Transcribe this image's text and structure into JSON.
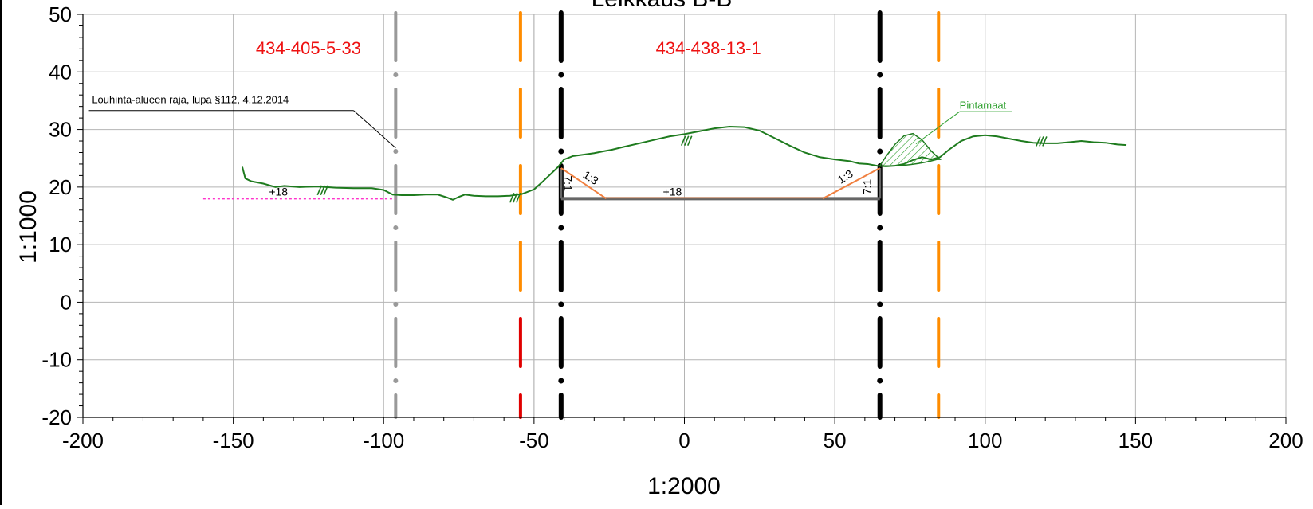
{
  "chart_data": {
    "type": "line",
    "title": "Leikkaus B-B",
    "xlabel": "1:2000",
    "ylabel": "1:1000",
    "xlim": [
      -200,
      200
    ],
    "ylim": [
      -20,
      50
    ],
    "x_ticks": [
      -200,
      -150,
      -100,
      -50,
      0,
      50,
      100,
      150,
      200
    ],
    "y_ticks": [
      -20,
      -10,
      0,
      10,
      20,
      30,
      40,
      50
    ],
    "grid": true,
    "property_lines": [
      {
        "x": -96,
        "color": "#999999",
        "label": "434-405-5-33",
        "label_x": -125
      },
      {
        "x": -54.5,
        "color": "#ff8c00",
        "color_lower": "#e00000",
        "label": "",
        "label_x": null
      },
      {
        "x": -41,
        "color": "#000000",
        "label": "434-438-13-1",
        "label_x": 8
      },
      {
        "x": 65,
        "color": "#000000",
        "label": "",
        "label_x": null
      },
      {
        "x": 84.5,
        "color": "#ff8c00",
        "label": "",
        "label_x": null
      }
    ],
    "series": [
      {
        "color": "#1e7b1e",
        "x": [
          -147,
          -146,
          -144,
          -140,
          -136,
          -133,
          -128,
          -122,
          -116,
          -110,
          -104,
          -100,
          -97,
          -94,
          -90,
          -86,
          -82,
          -79,
          -77,
          -75,
          -73,
          -70,
          -66,
          -62,
          -58,
          -54,
          -50,
          -47,
          -44,
          -42,
          -40,
          -37,
          -34,
          -30,
          -27,
          -24,
          -20,
          -15,
          -10,
          -5,
          0,
          5,
          10,
          15,
          20,
          25,
          30,
          35,
          40,
          45,
          50,
          55,
          58,
          61,
          64,
          67,
          70,
          73,
          76,
          79,
          82,
          85,
          88,
          92,
          96,
          100,
          104,
          108,
          112,
          116,
          120,
          124,
          128,
          132,
          136,
          140,
          144,
          147
        ],
        "y": [
          23.5,
          21.5,
          21,
          20.6,
          20,
          20.2,
          20,
          20.1,
          19.9,
          19.8,
          19.8,
          19.5,
          18.7,
          18.6,
          18.6,
          18.7,
          18.7,
          18.2,
          17.8,
          18.3,
          18.7,
          18.5,
          18.4,
          18.4,
          18.5,
          18.8,
          19.6,
          21,
          22.5,
          23.5,
          24.8,
          25.4,
          25.6,
          25.9,
          26.2,
          26.5,
          27,
          27.6,
          28.2,
          28.8,
          29.2,
          29.7,
          30.2,
          30.5,
          30.4,
          29.8,
          28.5,
          27.2,
          26,
          25.2,
          24.8,
          24.5,
          24.1,
          24,
          23.7,
          23.6,
          23.7,
          24,
          24.7,
          25.2,
          24.8,
          25.2,
          26.5,
          28,
          28.8,
          29,
          28.8,
          28.4,
          28,
          27.7,
          27.6,
          27.6,
          27.8,
          28,
          27.8,
          27.7,
          27.4,
          27.3
        ]
      }
    ],
    "excavation": {
      "level": 18,
      "level_label": "+18",
      "bottom_x": [
        -41,
        65
      ],
      "slope_bottom_x": [
        -26,
        46
      ],
      "slope_top_y": 23.3,
      "slope_ratio_label": "1:3",
      "wall_ratio_label": "7:1"
    },
    "ref_level": {
      "y": 18,
      "x": [
        -160,
        -96
      ],
      "label": "+18",
      "color": "#ff33cc"
    },
    "annotations": [
      {
        "text": "Louhinta-alueen raja, lupa §112, 4.12.2014",
        "color": "#000000"
      },
      {
        "text": "Pintamaat",
        "color": "#2ea02e"
      }
    ]
  }
}
